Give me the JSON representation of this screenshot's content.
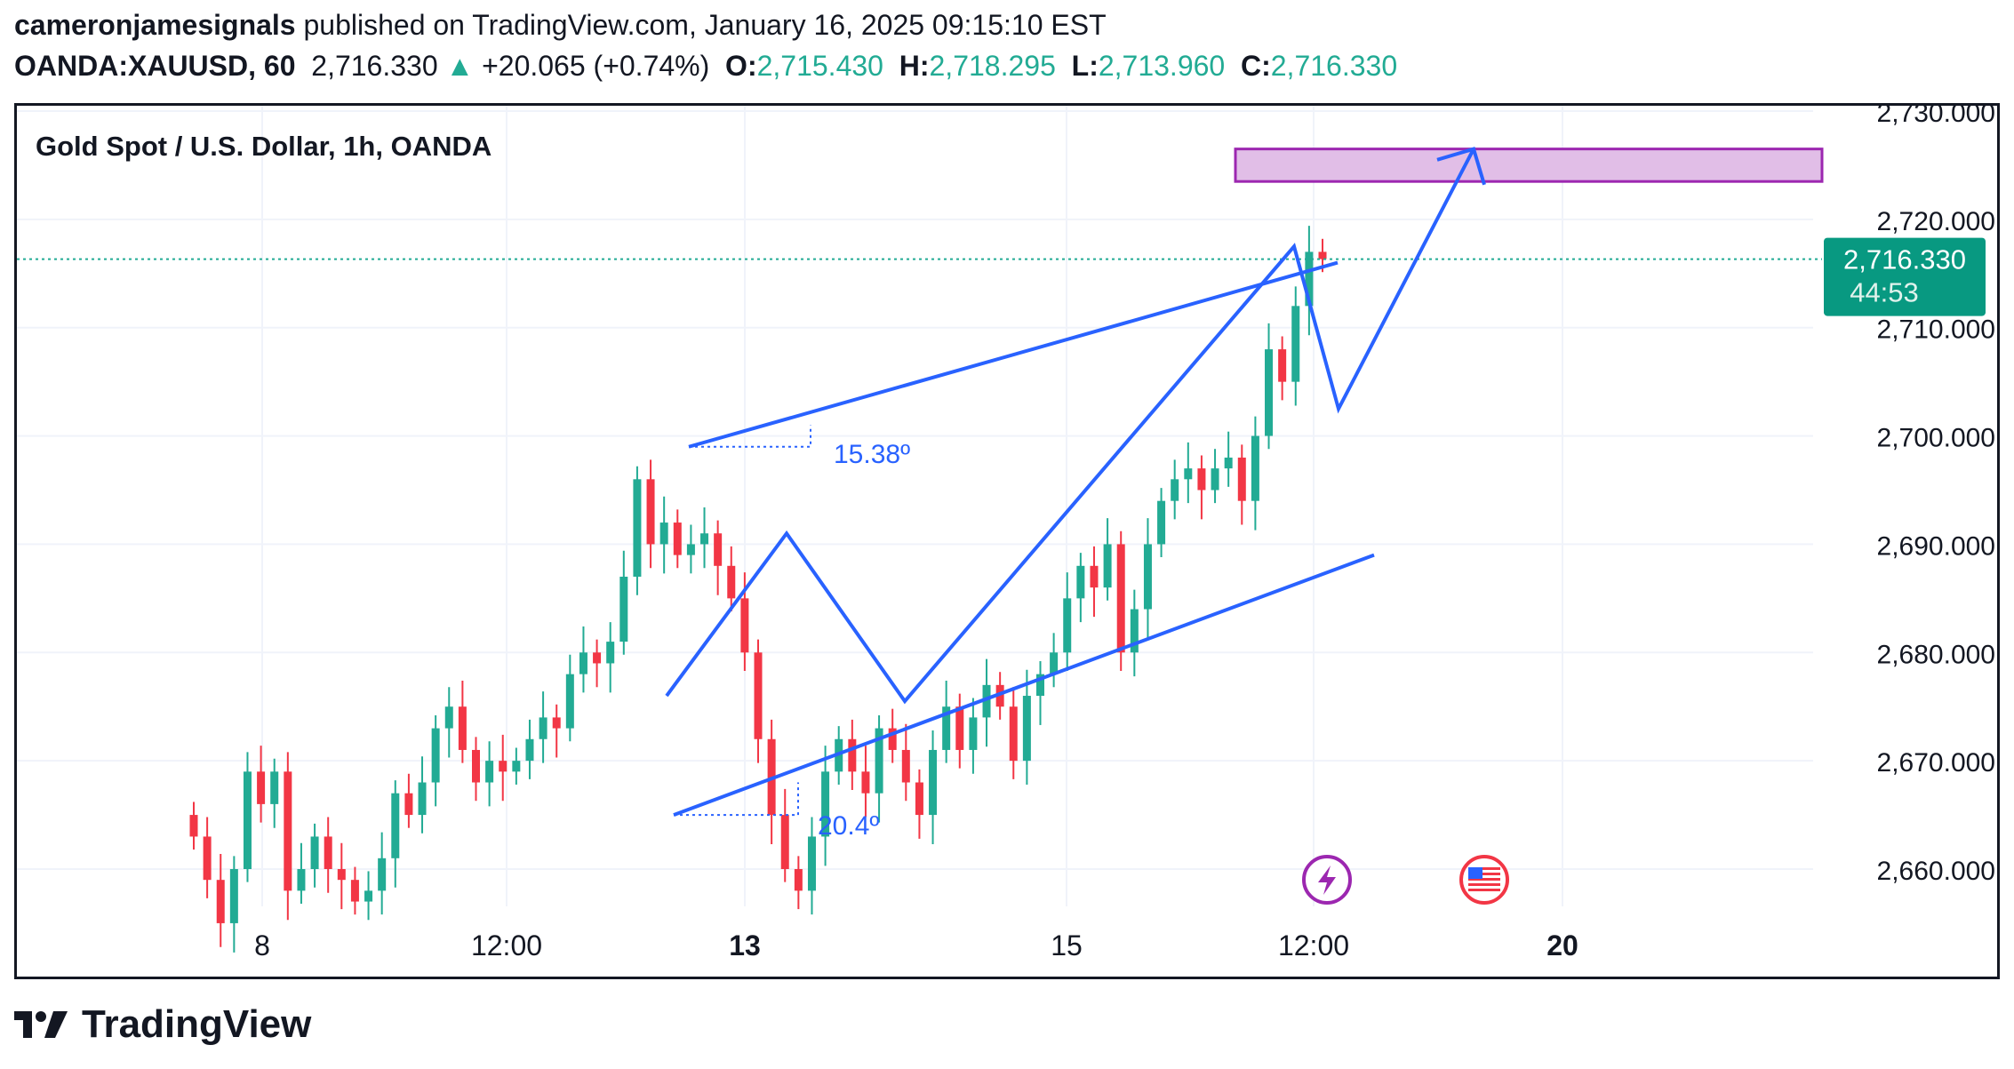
{
  "header": {
    "author": "cameronjamesignals",
    "published_text": "published on TradingView.com, January 16, 2025 09:15:10 EST",
    "symbol": "OANDA:XAUUSD, 60",
    "last": "2,716.330",
    "arrow": "▲",
    "change": "+20.065 (+0.74%)",
    "o_label": "O:",
    "o_value": "2,715.430",
    "h_label": "H:",
    "h_value": "2,718.295",
    "l_label": "L:",
    "l_value": "2,713.960",
    "c_label": "C:",
    "c_value": "2,716.330"
  },
  "footer": {
    "brand": "TradingView",
    "logo_icon": "tradingview-logo-icon"
  },
  "colors": {
    "up": "#22ab94",
    "down": "#f23645",
    "drawing": "#2962ff",
    "zone_fill": "#e1bee7",
    "zone_border": "#9c27b0",
    "price_label": "#089981"
  },
  "chart_data": {
    "type": "candlestick",
    "title": "Gold Spot / U.S. Dollar, 1h, OANDA",
    "ylim": [
      2656,
      2730
    ],
    "y_ticks": [
      2660,
      2670,
      2680,
      2690,
      2700,
      2710,
      2720,
      2730
    ],
    "y_tick_labels": [
      "2,660.000",
      "2,670.000",
      "2,680.000",
      "2,690.000",
      "2,700.000",
      "2,710.000",
      "2,720.000",
      "2,730.000"
    ],
    "x_ticks": [
      {
        "label": "8",
        "bold": false
      },
      {
        "label": "12:00",
        "bold": false
      },
      {
        "label": "13",
        "bold": true
      },
      {
        "label": "15",
        "bold": false
      },
      {
        "label": "12:00",
        "bold": false
      },
      {
        "label": "20",
        "bold": true
      }
    ],
    "last_price": 2716.33,
    "last_price_label": "2,716.330",
    "countdown_label": "44:53",
    "angle_labels": [
      "15.38º",
      "20.4º"
    ],
    "target_zone": [
      2723.5,
      2726.5
    ],
    "candles_close": [
      2663,
      2659,
      2655,
      2660,
      2669,
      2666,
      2669,
      2658,
      2660,
      2663,
      2660,
      2659,
      2657,
      2658,
      2661,
      2667,
      2665,
      2668,
      2673,
      2675,
      2671,
      2668,
      2670,
      2669,
      2670,
      2672,
      2674,
      2673,
      2678,
      2680,
      2679,
      2681,
      2687,
      2696,
      2690,
      2692,
      2689,
      2690,
      2691,
      2688,
      2685,
      2680,
      2672,
      2665,
      2660,
      2658,
      2663,
      2669,
      2672,
      2669,
      2667,
      2673,
      2671,
      2668,
      2665,
      2671,
      2675,
      2671,
      2674,
      2677,
      2675,
      2670,
      2676,
      2678,
      2680,
      2685,
      2688,
      2686,
      2690,
      2680,
      2684,
      2690,
      2694,
      2696,
      2697,
      2695,
      2697,
      2698,
      2694,
      2700,
      2708,
      2705,
      2712,
      2717,
      2716.33
    ]
  }
}
